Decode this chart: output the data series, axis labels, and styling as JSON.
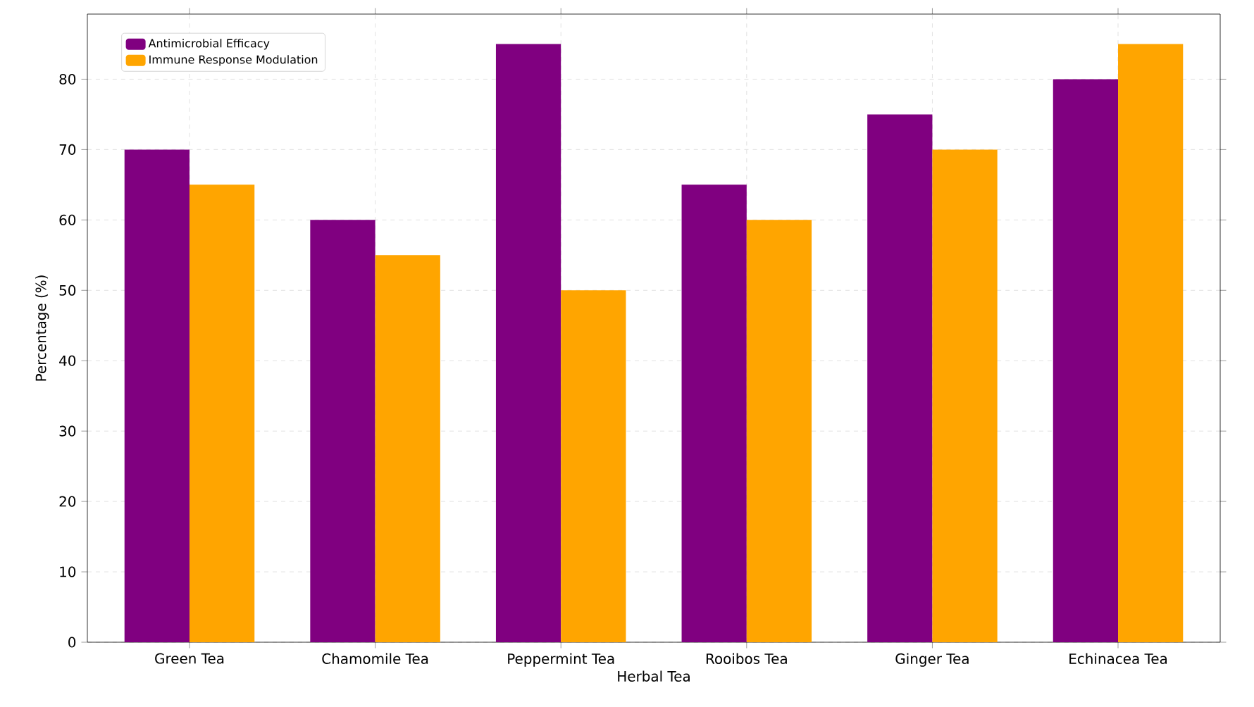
{
  "chart_data": {
    "type": "bar",
    "xlabel": "Herbal Tea",
    "ylabel": "Percentage (%)",
    "categories": [
      "Green Tea",
      "Chamomile Tea",
      "Peppermint Tea",
      "Rooibos Tea",
      "Ginger Tea",
      "Echinacea Tea"
    ],
    "series": [
      {
        "name": "Antimicrobial Efficacy",
        "color": "#800080",
        "values": [
          70,
          60,
          85,
          65,
          75,
          80
        ]
      },
      {
        "name": "Immune Response Modulation",
        "color": "#ffa500",
        "values": [
          65,
          55,
          50,
          60,
          70,
          85
        ]
      }
    ],
    "ylim": [
      0,
      89.25
    ],
    "yticks": [
      0,
      10,
      20,
      30,
      40,
      50,
      60,
      70,
      80
    ],
    "grid": true,
    "legend": "top left"
  }
}
